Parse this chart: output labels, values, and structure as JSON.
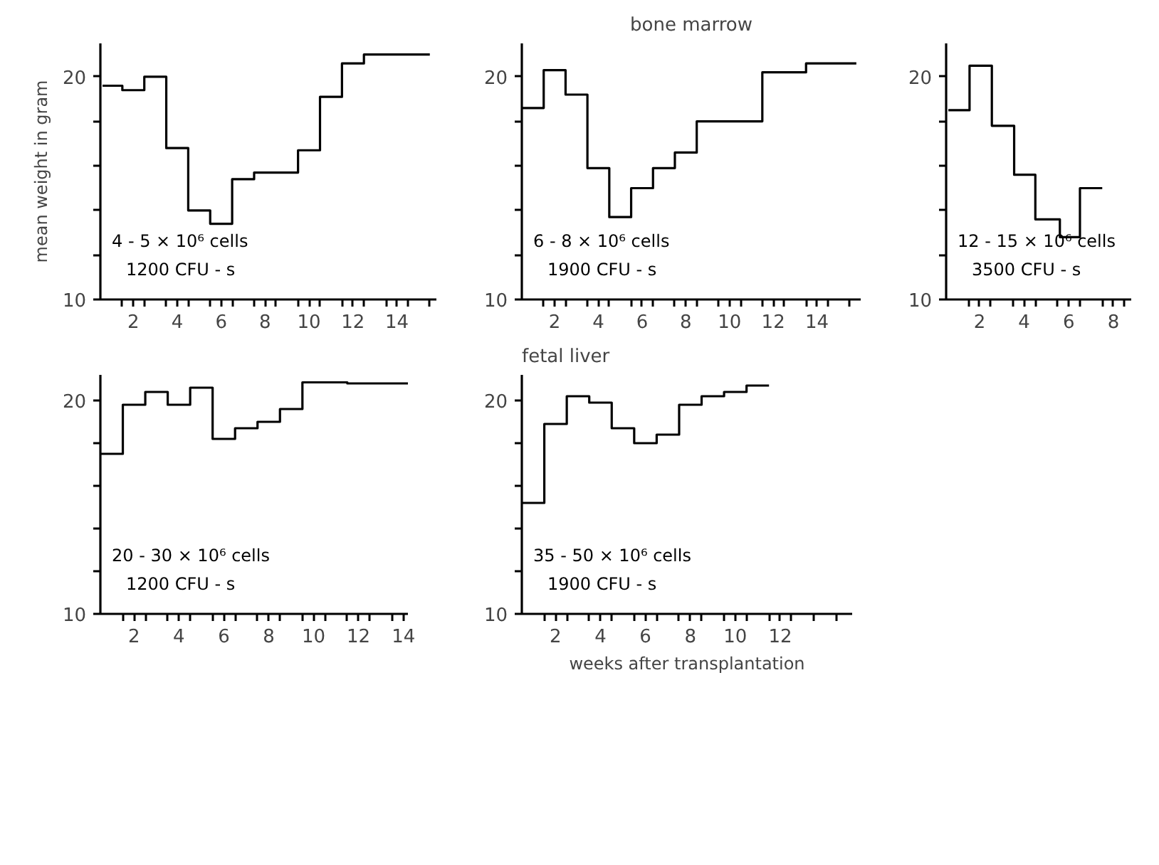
{
  "chart_data": [
    {
      "type": "step",
      "ylabel": "mean weight in gram",
      "x": [
        0.6,
        1.5,
        2.5,
        3.5,
        4.5,
        5.5,
        6.5,
        7.5,
        9.5,
        10.5,
        11.5,
        12.5,
        15.5
      ],
      "series": [
        {
          "color": "#000000",
          "values": [
            19.6,
            19.4,
            20.0,
            16.8,
            14.0,
            13.4,
            15.4,
            15.7,
            16.7,
            19.1,
            20.6,
            21.0,
            21.0
          ]
        }
      ],
      "xlim": [
        0.5,
        15.8
      ],
      "ylim": [
        10,
        21.5
      ],
      "xticks": [
        {
          "value": 1.5,
          "label": null
        },
        2,
        {
          "value": 2.5,
          "label": null
        },
        {
          "value": 3.5,
          "label": null
        },
        4,
        {
          "value": 4.5,
          "label": null
        },
        {
          "value": 5.5,
          "label": null
        },
        6,
        {
          "value": 6.5,
          "label": null
        },
        {
          "value": 7.5,
          "label": null
        },
        8,
        {
          "value": 8.5,
          "label": null
        },
        {
          "value": 9.5,
          "label": null
        },
        10,
        {
          "value": 10.5,
          "label": null
        },
        {
          "value": 11.5,
          "label": null
        },
        12,
        {
          "value": 12.5,
          "label": null
        },
        {
          "value": 13.5,
          "label": null
        },
        14,
        {
          "value": 14.5,
          "label": null
        },
        {
          "value": 15.5,
          "label": null
        }
      ],
      "yticks": [
        10,
        {
          "value": 12,
          "label": null
        },
        {
          "value": 14,
          "label": null
        },
        {
          "value": 16,
          "label": null
        },
        {
          "value": 18,
          "label": null
        },
        20
      ],
      "annotations": [
        "4 - 5 × 10⁶ cells",
        "1200 CFU - s"
      ]
    },
    {
      "type": "step",
      "title": "bone marrow",
      "x": [
        0.5,
        1.5,
        2.5,
        3.5,
        4.5,
        5.5,
        6.5,
        7.5,
        8.5,
        11.5,
        13.5,
        15.8
      ],
      "series": [
        {
          "color": "#000000",
          "values": [
            18.6,
            20.3,
            19.2,
            15.9,
            13.7,
            15.0,
            15.9,
            16.6,
            18.0,
            20.2,
            20.6,
            20.6
          ]
        }
      ],
      "xlim": [
        0.5,
        16
      ],
      "ylim": [
        10,
        21.5
      ],
      "xticks": [
        {
          "value": 1.5,
          "label": null
        },
        2,
        {
          "value": 2.5,
          "label": null
        },
        {
          "value": 3.5,
          "label": null
        },
        4,
        {
          "value": 4.5,
          "label": null
        },
        {
          "value": 5.5,
          "label": null
        },
        6,
        {
          "value": 6.5,
          "label": null
        },
        {
          "value": 7.5,
          "label": null
        },
        8,
        {
          "value": 8.5,
          "label": null
        },
        {
          "value": 9.5,
          "label": null
        },
        10,
        {
          "value": 10.5,
          "label": null
        },
        {
          "value": 11.5,
          "label": null
        },
        12,
        {
          "value": 12.5,
          "label": null
        },
        {
          "value": 13.5,
          "label": null
        },
        14,
        {
          "value": 14.5,
          "label": null
        },
        {
          "value": 15.5,
          "label": null
        }
      ],
      "yticks": [
        10,
        {
          "value": 12,
          "label": null
        },
        {
          "value": 14,
          "label": null
        },
        {
          "value": 16,
          "label": null
        },
        {
          "value": 18,
          "label": null
        },
        20
      ],
      "annotations": [
        "6 - 8 × 10⁶ cells",
        "1900 CFU - s"
      ]
    },
    {
      "type": "step",
      "x": [
        0.6,
        1.55,
        2.55,
        3.55,
        4.5,
        5.6,
        6.5,
        7.5
      ],
      "series": [
        {
          "color": "#000000",
          "values": [
            18.5,
            20.5,
            17.8,
            15.6,
            13.6,
            12.8,
            15.0,
            15.0
          ]
        }
      ],
      "xlim": [
        0.5,
        8.8
      ],
      "ylim": [
        10,
        21.5
      ],
      "xticks": [
        {
          "value": 1.5,
          "label": null
        },
        2,
        {
          "value": 2.5,
          "label": null
        },
        {
          "value": 3.5,
          "label": null
        },
        4,
        {
          "value": 4.5,
          "label": null
        },
        {
          "value": 5.5,
          "label": null
        },
        6,
        {
          "value": 6.5,
          "label": null
        },
        {
          "value": 7.5,
          "label": null
        },
        8,
        {
          "value": 8.5,
          "label": null
        }
      ],
      "yticks": [
        10,
        {
          "value": 12,
          "label": null
        },
        {
          "value": 14,
          "label": null
        },
        {
          "value": 16,
          "label": null
        },
        {
          "value": 18,
          "label": null
        },
        20
      ],
      "annotations": [
        "12 - 15 × 10⁶ cells",
        "3500 CFU - s"
      ]
    },
    {
      "type": "step",
      "x": [
        0.5,
        1.5,
        2.5,
        3.5,
        4.5,
        5.5,
        6.5,
        7.5,
        8.5,
        9.5,
        11.5,
        14.2
      ],
      "series": [
        {
          "color": "#000000",
          "values": [
            17.5,
            19.8,
            20.4,
            19.8,
            20.6,
            18.2,
            18.7,
            19.0,
            19.6,
            20.85,
            20.8,
            20.8
          ]
        }
      ],
      "xlim": [
        0.5,
        14.2
      ],
      "ylim": [
        10,
        21.2
      ],
      "xticks": [
        {
          "value": 1.5,
          "label": null
        },
        2,
        {
          "value": 2.5,
          "label": null
        },
        {
          "value": 3.5,
          "label": null
        },
        4,
        {
          "value": 4.5,
          "label": null
        },
        {
          "value": 5.5,
          "label": null
        },
        6,
        {
          "value": 6.5,
          "label": null
        },
        {
          "value": 7.5,
          "label": null
        },
        8,
        {
          "value": 8.5,
          "label": null
        },
        {
          "value": 9.5,
          "label": null
        },
        10,
        {
          "value": 10.5,
          "label": null
        },
        {
          "value": 11.5,
          "label": null
        },
        12,
        {
          "value": 12.5,
          "label": null
        },
        {
          "value": 13.5,
          "label": null
        },
        14
      ],
      "yticks": [
        10,
        {
          "value": 12,
          "label": null
        },
        {
          "value": 14,
          "label": null
        },
        {
          "value": 16,
          "label": null
        },
        {
          "value": 18,
          "label": null
        },
        20
      ],
      "annotations": [
        "20 - 30 × 10⁶ cells",
        "1200 CFU - s"
      ]
    },
    {
      "type": "step",
      "title": "fetal liver",
      "xlabel": "weeks after transplantation",
      "x": [
        0.5,
        1.5,
        2.5,
        3.5,
        4.5,
        5.5,
        6.5,
        7.5,
        8.5,
        9.5,
        10.5,
        11.5
      ],
      "series": [
        {
          "color": "#000000",
          "values": [
            15.2,
            18.9,
            20.2,
            19.9,
            18.7,
            18.0,
            18.4,
            19.8,
            20.2,
            20.4,
            20.7,
            20.7
          ]
        }
      ],
      "xlim": [
        0.5,
        15.2
      ],
      "ylim": [
        10,
        21.2
      ],
      "xticks": [
        {
          "value": 1.5,
          "label": null
        },
        2,
        {
          "value": 2.5,
          "label": null
        },
        {
          "value": 3.5,
          "label": null
        },
        4,
        {
          "value": 4.5,
          "label": null
        },
        {
          "value": 5.5,
          "label": null
        },
        6,
        {
          "value": 6.5,
          "label": null
        },
        {
          "value": 7.5,
          "label": null
        },
        8,
        {
          "value": 8.5,
          "label": null
        },
        {
          "value": 9.5,
          "label": null
        },
        10,
        {
          "value": 10.5,
          "label": null
        },
        {
          "value": 11.5,
          "label": null
        },
        12,
        {
          "value": 12.5,
          "label": null
        },
        {
          "value": 13.5,
          "label": null
        },
        {
          "value": 14.5,
          "label": null
        }
      ],
      "yticks": [
        10,
        {
          "value": 12,
          "label": null
        },
        {
          "value": 14,
          "label": null
        },
        {
          "value": 16,
          "label": null
        },
        {
          "value": 18,
          "label": null
        },
        20
      ],
      "annotations": [
        "35 - 50 × 10⁶ cells",
        "1900 CFU - s"
      ]
    }
  ]
}
